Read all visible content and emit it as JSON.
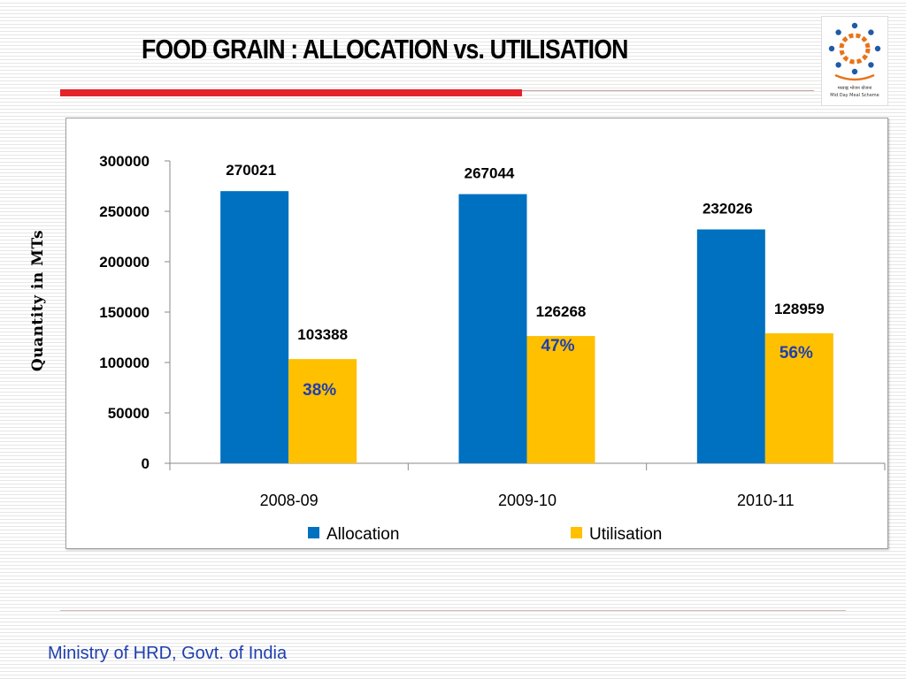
{
  "slide": {
    "title": "FOOD GRAIN : ALLOCATION vs. UTILISATION",
    "footer": "Ministry of HRD, Govt. of India",
    "logo_line1": "मध्याह्न भोजन योजना",
    "logo_line2": "Mid Day Meal Scheme"
  },
  "colors": {
    "allocation": "#0070c0",
    "utilisation": "#ffc000",
    "percent_text": "#1f3fae",
    "accent_red": "#e4222c"
  },
  "chart_data": {
    "type": "bar",
    "title": "",
    "xlabel": "",
    "ylabel": "Quantity in MTs",
    "categories": [
      "2008-09",
      "2009-10",
      "2010-11"
    ],
    "series": [
      {
        "name": "Allocation",
        "values": [
          270021,
          267044,
          232026
        ],
        "labels": [
          "270021",
          "267044",
          "232026"
        ]
      },
      {
        "name": "Utilisation",
        "values": [
          103388,
          126268,
          128959
        ],
        "labels": [
          "103388",
          "126268",
          "128959"
        ]
      }
    ],
    "annotations": [
      "38%",
      "47%",
      "56%"
    ],
    "ylim": [
      0,
      300000
    ],
    "yticks": [
      "0",
      "50000",
      "100000",
      "150000",
      "200000",
      "250000",
      "300000"
    ],
    "grid": false,
    "legend": "bottom"
  }
}
